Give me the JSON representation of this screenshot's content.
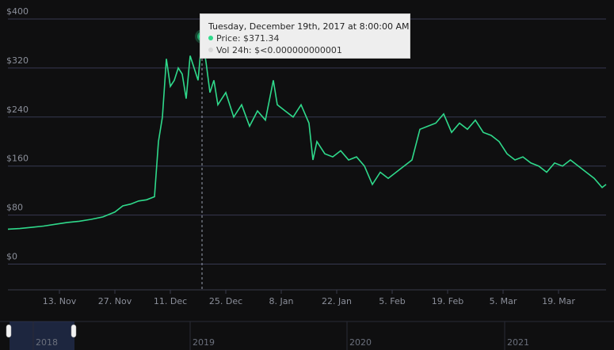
{
  "colors": {
    "background": "#0f0f10",
    "line": "#2fd98b",
    "grid": "#373850",
    "text": "#8b8f9a",
    "navigator_mask": "#2a3a66"
  },
  "tooltip": {
    "title": "Tuesday, December 19th, 2017 at 8:00:00 AM",
    "price_label": "Price: $371.34",
    "volume_label": "Vol 24h: $<0.000000000001"
  },
  "navigator": {
    "labels": [
      "2018",
      "2019",
      "2020",
      "2021"
    ]
  },
  "chart_data": {
    "type": "line",
    "title": "",
    "xlabel": "",
    "ylabel": "",
    "ylim": [
      -20,
      400
    ],
    "y_ticks": [
      "$400",
      "$320",
      "$240",
      "$160",
      "$80",
      "$0"
    ],
    "y_tick_values": [
      400,
      320,
      240,
      160,
      80,
      0
    ],
    "x_ticks": [
      "13. Nov",
      "27. Nov",
      "11. Dec",
      "25. Dec",
      "8. Jan",
      "22. Jan",
      "5. Feb",
      "19. Feb",
      "5. Mar",
      "19. Mar"
    ],
    "x_range": [
      "2017-10-31",
      "2018-03-31"
    ],
    "grid": true,
    "highlight": {
      "date": "2017-12-19",
      "value": 371.34
    },
    "series": [
      {
        "name": "Price",
        "x": [
          "2017-10-31",
          "2017-11-03",
          "2017-11-06",
          "2017-11-09",
          "2017-11-12",
          "2017-11-15",
          "2017-11-18",
          "2017-11-21",
          "2017-11-24",
          "2017-11-27",
          "2017-11-29",
          "2017-12-01",
          "2017-12-03",
          "2017-12-05",
          "2017-12-07",
          "2017-12-08",
          "2017-12-09",
          "2017-12-10",
          "2017-12-11",
          "2017-12-12",
          "2017-12-13",
          "2017-12-14",
          "2017-12-15",
          "2017-12-16",
          "2017-12-17",
          "2017-12-18",
          "2017-12-19",
          "2017-12-20",
          "2017-12-21",
          "2017-12-22",
          "2017-12-23",
          "2017-12-24",
          "2017-12-25",
          "2017-12-27",
          "2017-12-29",
          "2017-12-31",
          "2018-01-02",
          "2018-01-04",
          "2018-01-06",
          "2018-01-07",
          "2018-01-09",
          "2018-01-11",
          "2018-01-13",
          "2018-01-15",
          "2018-01-16",
          "2018-01-17",
          "2018-01-19",
          "2018-01-21",
          "2018-01-23",
          "2018-01-25",
          "2018-01-27",
          "2018-01-29",
          "2018-01-31",
          "2018-02-02",
          "2018-02-04",
          "2018-02-06",
          "2018-02-08",
          "2018-02-10",
          "2018-02-12",
          "2018-02-14",
          "2018-02-16",
          "2018-02-18",
          "2018-02-20",
          "2018-02-22",
          "2018-02-24",
          "2018-02-26",
          "2018-02-28",
          "2018-03-02",
          "2018-03-04",
          "2018-03-06",
          "2018-03-08",
          "2018-03-10",
          "2018-03-12",
          "2018-03-14",
          "2018-03-16",
          "2018-03-18",
          "2018-03-20",
          "2018-03-22",
          "2018-03-24",
          "2018-03-26",
          "2018-03-28",
          "2018-03-30",
          "2018-03-31"
        ],
        "y": [
          57,
          58,
          60,
          62,
          65,
          68,
          70,
          73,
          77,
          85,
          95,
          98,
          103,
          105,
          110,
          200,
          240,
          335,
          290,
          300,
          320,
          310,
          270,
          340,
          320,
          300,
          371,
          330,
          280,
          300,
          260,
          270,
          280,
          240,
          260,
          225,
          250,
          235,
          300,
          260,
          250,
          240,
          260,
          230,
          170,
          200,
          180,
          175,
          185,
          170,
          175,
          160,
          130,
          150,
          140,
          150,
          160,
          170,
          220,
          225,
          230,
          245,
          215,
          230,
          220,
          235,
          215,
          210,
          200,
          180,
          170,
          175,
          165,
          160,
          150,
          165,
          160,
          170,
          160,
          150,
          140,
          125,
          130
        ]
      }
    ]
  }
}
